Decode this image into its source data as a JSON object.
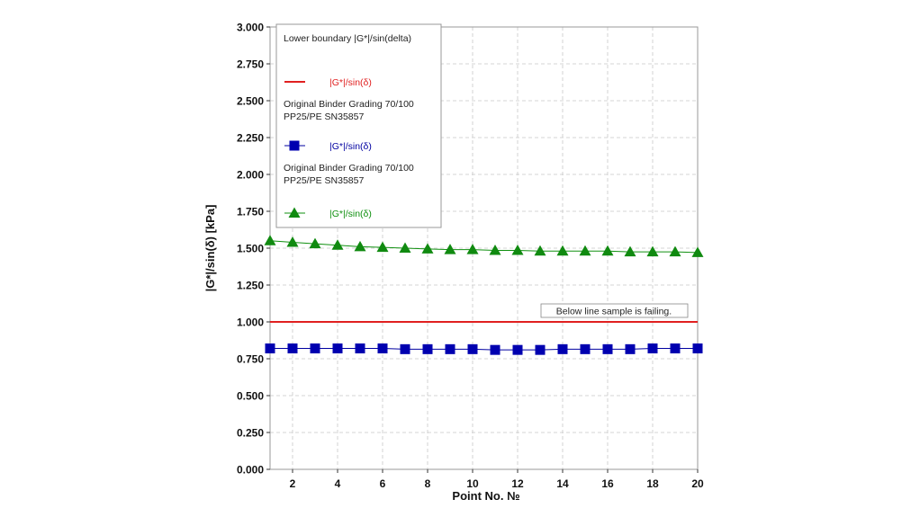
{
  "chart_data": {
    "type": "line",
    "title": "",
    "xlabel": "Point No. №",
    "ylabel": "|G*|/sin(δ) [kPa]",
    "xlim": [
      1,
      20
    ],
    "ylim": [
      0,
      3
    ],
    "x_ticks": [
      "2",
      "4",
      "6",
      "8",
      "10",
      "12",
      "14",
      "16",
      "18",
      "20"
    ],
    "y_ticks": [
      "0.000",
      "0.250",
      "0.500",
      "0.750",
      "1.000",
      "1.250",
      "1.500",
      "1.750",
      "2.000",
      "2.250",
      "2.500",
      "2.750",
      "3.000"
    ],
    "grid": "dashed horizontal and vertical",
    "legend_position": "top-left",
    "annotation": "Below line sample is failing.",
    "series": [
      {
        "group": "Lower boundary |G*|/sin(delta)",
        "name": "|G*|/sin(δ)",
        "color": "#e02020",
        "marker": "none",
        "x": [
          1,
          20
        ],
        "values": [
          1.0,
          1.0
        ]
      },
      {
        "group": "Original Binder Grading 70/100 PP25/PE SN35857",
        "name": "|G*|/sin(δ)",
        "color": "#0000a0",
        "marker": "square",
        "x": [
          1,
          2,
          3,
          4,
          5,
          6,
          7,
          8,
          9,
          10,
          11,
          12,
          13,
          14,
          15,
          16,
          17,
          18,
          19,
          20
        ],
        "values": [
          0.82,
          0.82,
          0.82,
          0.82,
          0.82,
          0.82,
          0.815,
          0.815,
          0.815,
          0.815,
          0.81,
          0.81,
          0.81,
          0.815,
          0.815,
          0.815,
          0.815,
          0.82,
          0.82,
          0.82
        ]
      },
      {
        "group": "Original Binder Grading 70/100 PP25/PE SN35857",
        "name": "|G*|/sin(δ)",
        "color": "#109010",
        "marker": "triangle",
        "x": [
          1,
          2,
          3,
          4,
          5,
          6,
          7,
          8,
          9,
          10,
          11,
          12,
          13,
          14,
          15,
          16,
          17,
          18,
          19,
          20
        ],
        "values": [
          1.55,
          1.54,
          1.53,
          1.52,
          1.51,
          1.505,
          1.5,
          1.495,
          1.49,
          1.49,
          1.485,
          1.485,
          1.48,
          1.48,
          1.48,
          1.48,
          1.475,
          1.475,
          1.475,
          1.47
        ]
      }
    ]
  }
}
